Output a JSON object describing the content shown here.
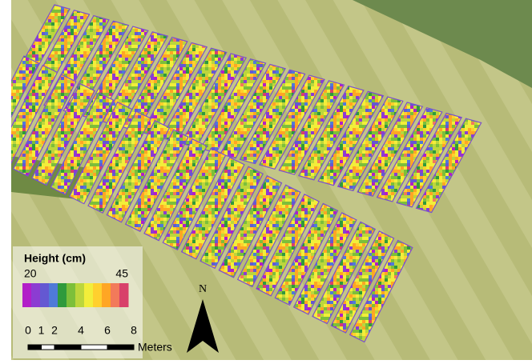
{
  "legend": {
    "title": "Height (cm)",
    "min": 20,
    "max": 45,
    "colors": [
      "#b21ec8",
      "#8c3cd2",
      "#6458d2",
      "#4f7ad8",
      "#2f9a3c",
      "#7cbf3a",
      "#bcd63c",
      "#f2ee3a",
      "#ffd02e",
      "#ffa624",
      "#f27a5a",
      "#d8406a"
    ]
  },
  "scale_bar": {
    "ticks": [
      0,
      1,
      2,
      4,
      6,
      8
    ],
    "unit": "Meters"
  },
  "north_arrow": {
    "label": "N"
  }
}
